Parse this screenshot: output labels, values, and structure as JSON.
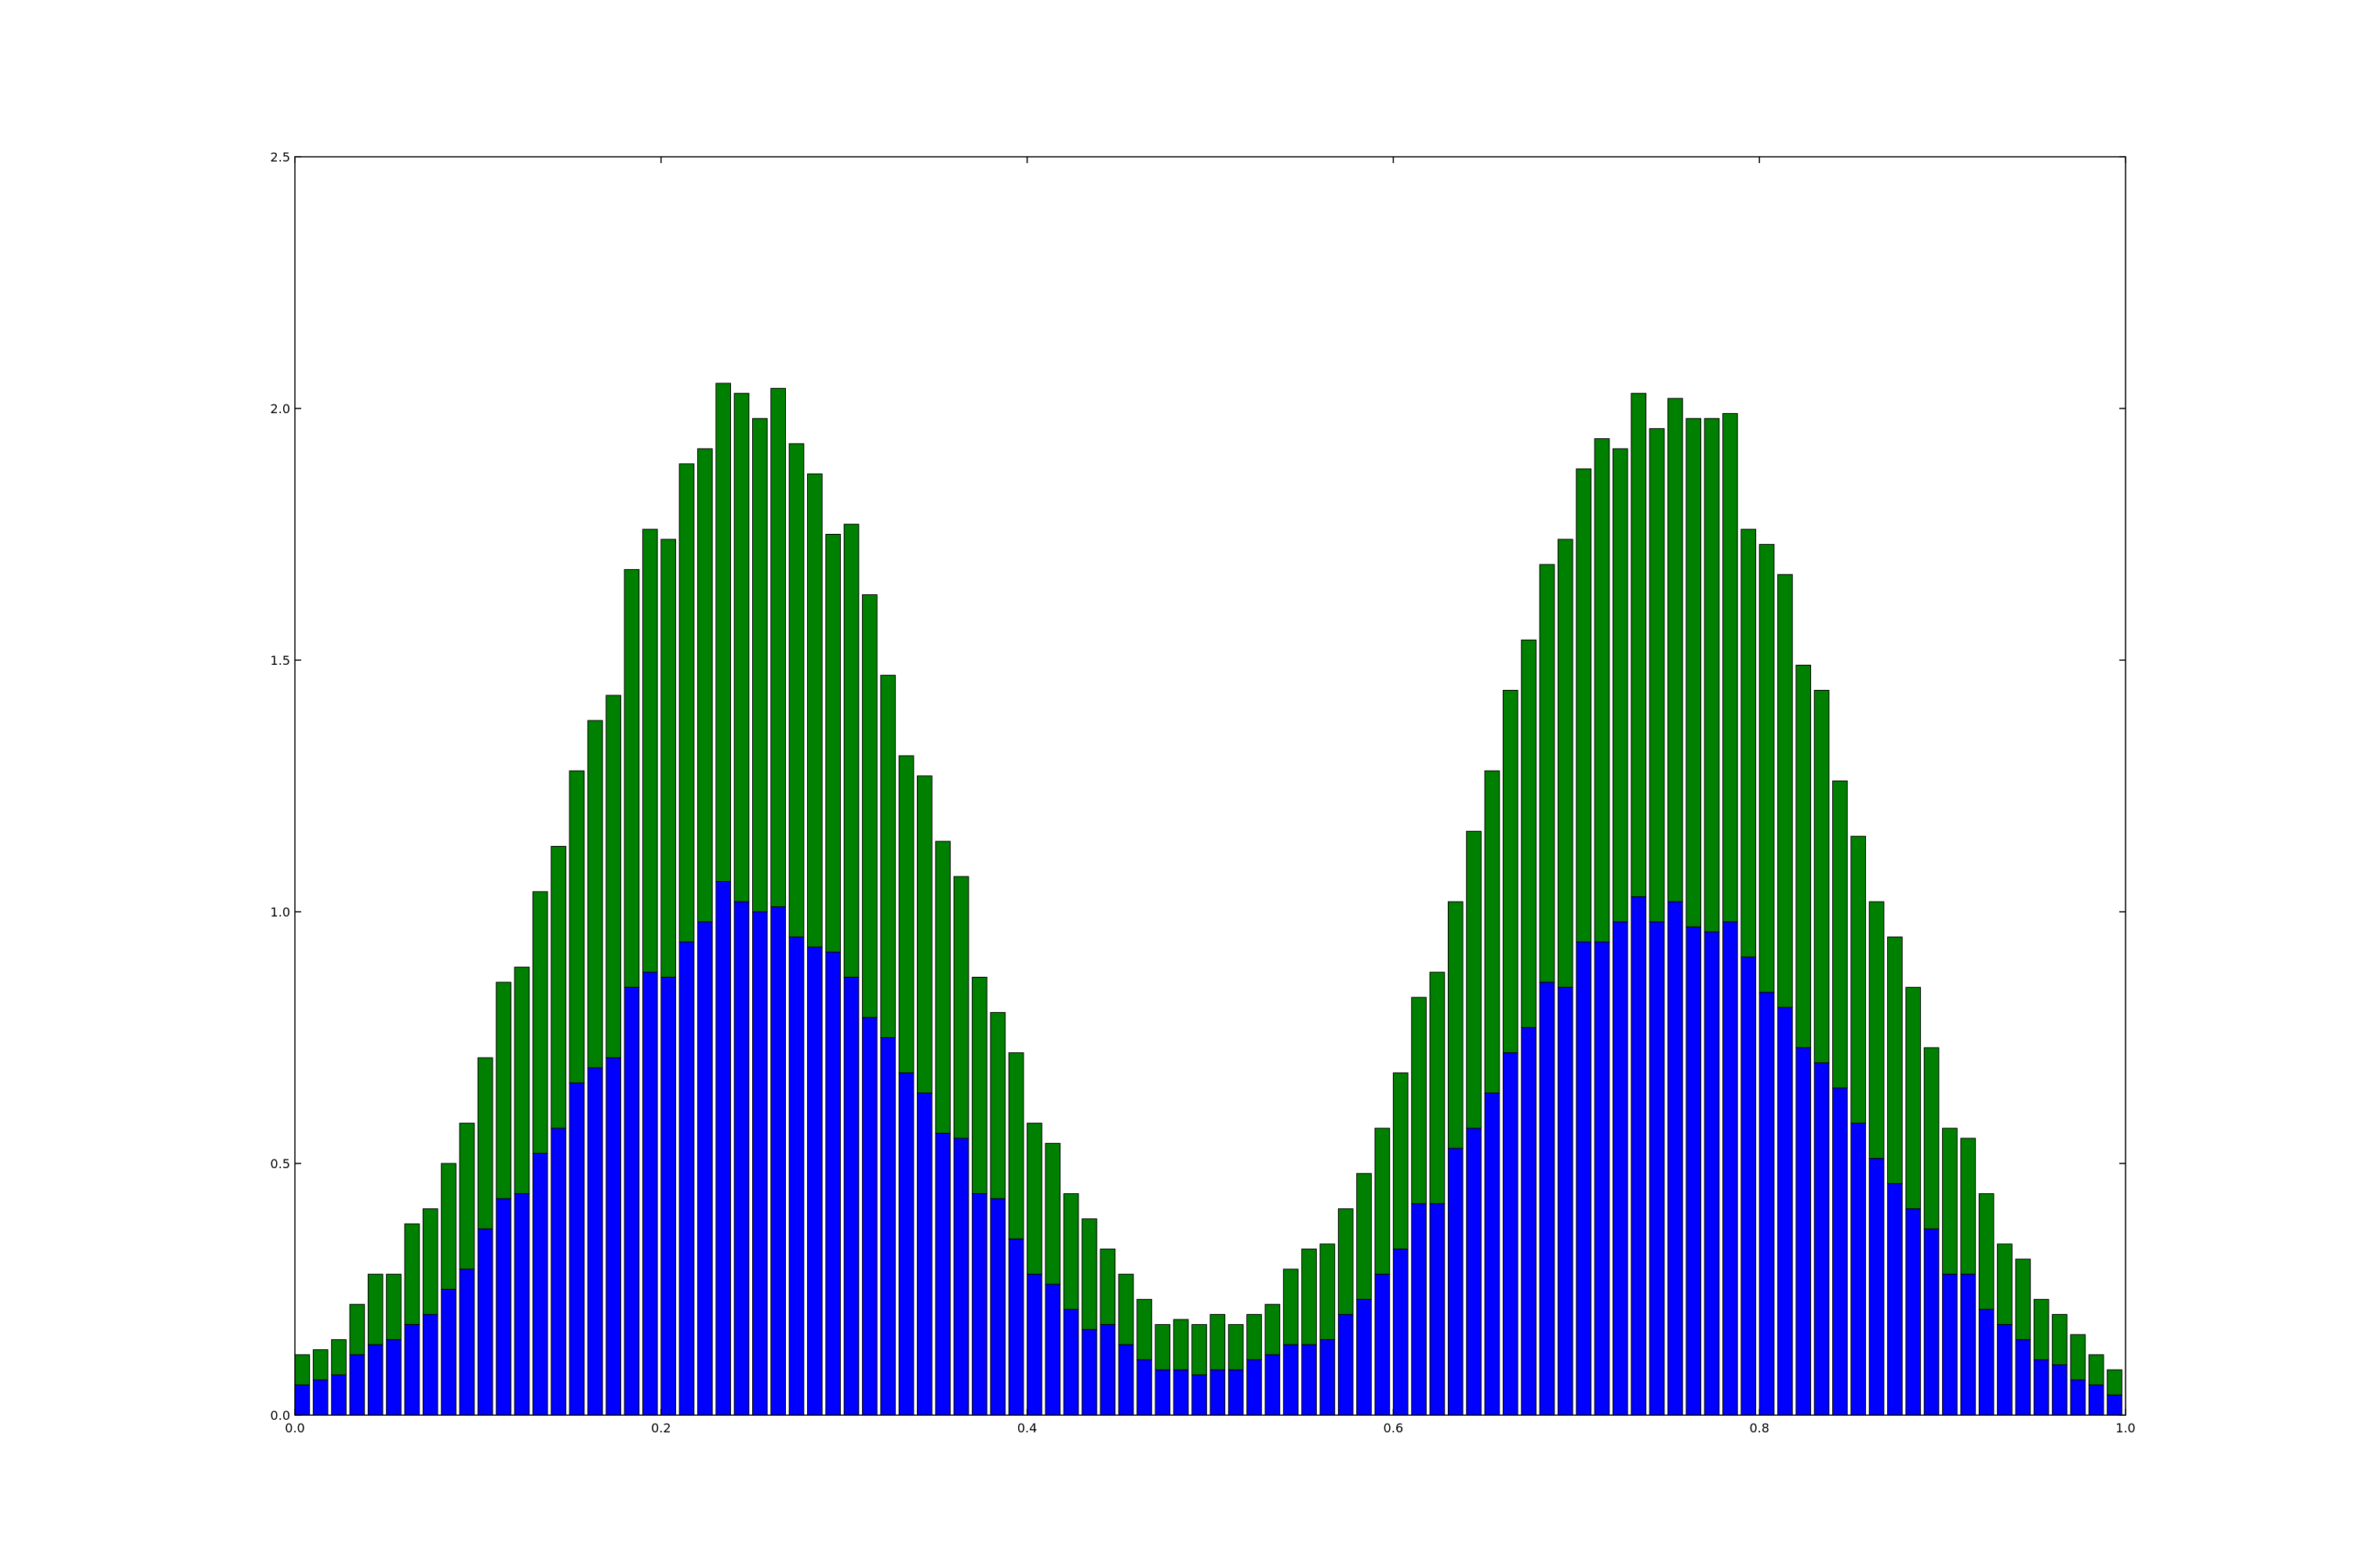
{
  "chart_data": {
    "type": "bar",
    "stacked": true,
    "title": "",
    "xlabel": "",
    "ylabel": "",
    "xlim": [
      0.0,
      1.0
    ],
    "ylim": [
      0.0,
      2.5
    ],
    "x_ticks": [
      "0.0",
      "0.2",
      "0.4",
      "0.6",
      "0.8",
      "1.0"
    ],
    "y_ticks": [
      "0.0",
      "0.5",
      "1.0",
      "1.5",
      "2.0",
      "2.5"
    ],
    "grid": false,
    "legend": "none",
    "bar_width": 0.008,
    "x": [
      0.0,
      0.01,
      0.02,
      0.03,
      0.04,
      0.05,
      0.06,
      0.07,
      0.08,
      0.09,
      0.1,
      0.11,
      0.12,
      0.13,
      0.14,
      0.15,
      0.16,
      0.17,
      0.18,
      0.19,
      0.2,
      0.21,
      0.22,
      0.23,
      0.24,
      0.25,
      0.26,
      0.27,
      0.28,
      0.29,
      0.3,
      0.31,
      0.32,
      0.33,
      0.34,
      0.35,
      0.36,
      0.37,
      0.38,
      0.39,
      0.4,
      0.41,
      0.42,
      0.43,
      0.44,
      0.45,
      0.46,
      0.47,
      0.48,
      0.49,
      0.5,
      0.51,
      0.52,
      0.53,
      0.54,
      0.55,
      0.56,
      0.57,
      0.58,
      0.59,
      0.6,
      0.61,
      0.62,
      0.63,
      0.64,
      0.65,
      0.66,
      0.67,
      0.68,
      0.69,
      0.7,
      0.71,
      0.72,
      0.73,
      0.74,
      0.75,
      0.76,
      0.77,
      0.78,
      0.79,
      0.8,
      0.81,
      0.82,
      0.83,
      0.84,
      0.85,
      0.86,
      0.87,
      0.88,
      0.89,
      0.9,
      0.91,
      0.92,
      0.93,
      0.94,
      0.95,
      0.96,
      0.97,
      0.98,
      0.99
    ],
    "series": [
      {
        "color": "#0000ff",
        "values": [
          0.06,
          0.07,
          0.08,
          0.12,
          0.14,
          0.15,
          0.18,
          0.2,
          0.25,
          0.29,
          0.37,
          0.43,
          0.44,
          0.52,
          0.57,
          0.66,
          0.69,
          0.71,
          0.85,
          0.88,
          0.87,
          0.94,
          0.98,
          1.06,
          1.02,
          1.0,
          1.01,
          0.95,
          0.93,
          0.92,
          0.87,
          0.79,
          0.75,
          0.68,
          0.64,
          0.56,
          0.55,
          0.44,
          0.43,
          0.35,
          0.28,
          0.26,
          0.21,
          0.17,
          0.18,
          0.14,
          0.11,
          0.09,
          0.09,
          0.08,
          0.09,
          0.09,
          0.11,
          0.12,
          0.14,
          0.14,
          0.15,
          0.2,
          0.23,
          0.28,
          0.33,
          0.42,
          0.42,
          0.53,
          0.57,
          0.64,
          0.72,
          0.77,
          0.86,
          0.85,
          0.94,
          0.94,
          0.98,
          1.03,
          0.98,
          1.02,
          0.97,
          0.96,
          0.98,
          0.91,
          0.84,
          0.81,
          0.73,
          0.7,
          0.65,
          0.58,
          0.51,
          0.46,
          0.41,
          0.37,
          0.28,
          0.28,
          0.21,
          0.18,
          0.15,
          0.11,
          0.1,
          0.07,
          0.06,
          0.04
        ]
      },
      {
        "color": "#008000",
        "values": [
          0.06,
          0.06,
          0.07,
          0.1,
          0.14,
          0.13,
          0.2,
          0.21,
          0.25,
          0.29,
          0.34,
          0.43,
          0.45,
          0.52,
          0.56,
          0.62,
          0.69,
          0.72,
          0.83,
          0.88,
          0.87,
          0.95,
          0.94,
          0.99,
          1.01,
          0.98,
          1.03,
          0.98,
          0.94,
          0.83,
          0.9,
          0.84,
          0.72,
          0.63,
          0.63,
          0.58,
          0.52,
          0.43,
          0.37,
          0.37,
          0.3,
          0.28,
          0.23,
          0.22,
          0.15,
          0.14,
          0.12,
          0.09,
          0.1,
          0.1,
          0.11,
          0.09,
          0.09,
          0.1,
          0.15,
          0.19,
          0.19,
          0.21,
          0.25,
          0.29,
          0.35,
          0.41,
          0.46,
          0.49,
          0.59,
          0.64,
          0.72,
          0.77,
          0.83,
          0.89,
          0.94,
          1.0,
          0.94,
          1.0,
          0.98,
          1.0,
          1.01,
          1.02,
          1.01,
          0.85,
          0.89,
          0.86,
          0.76,
          0.74,
          0.61,
          0.57,
          0.51,
          0.49,
          0.44,
          0.36,
          0.29,
          0.27,
          0.23,
          0.16,
          0.16,
          0.12,
          0.1,
          0.09,
          0.06,
          0.05
        ]
      }
    ]
  }
}
